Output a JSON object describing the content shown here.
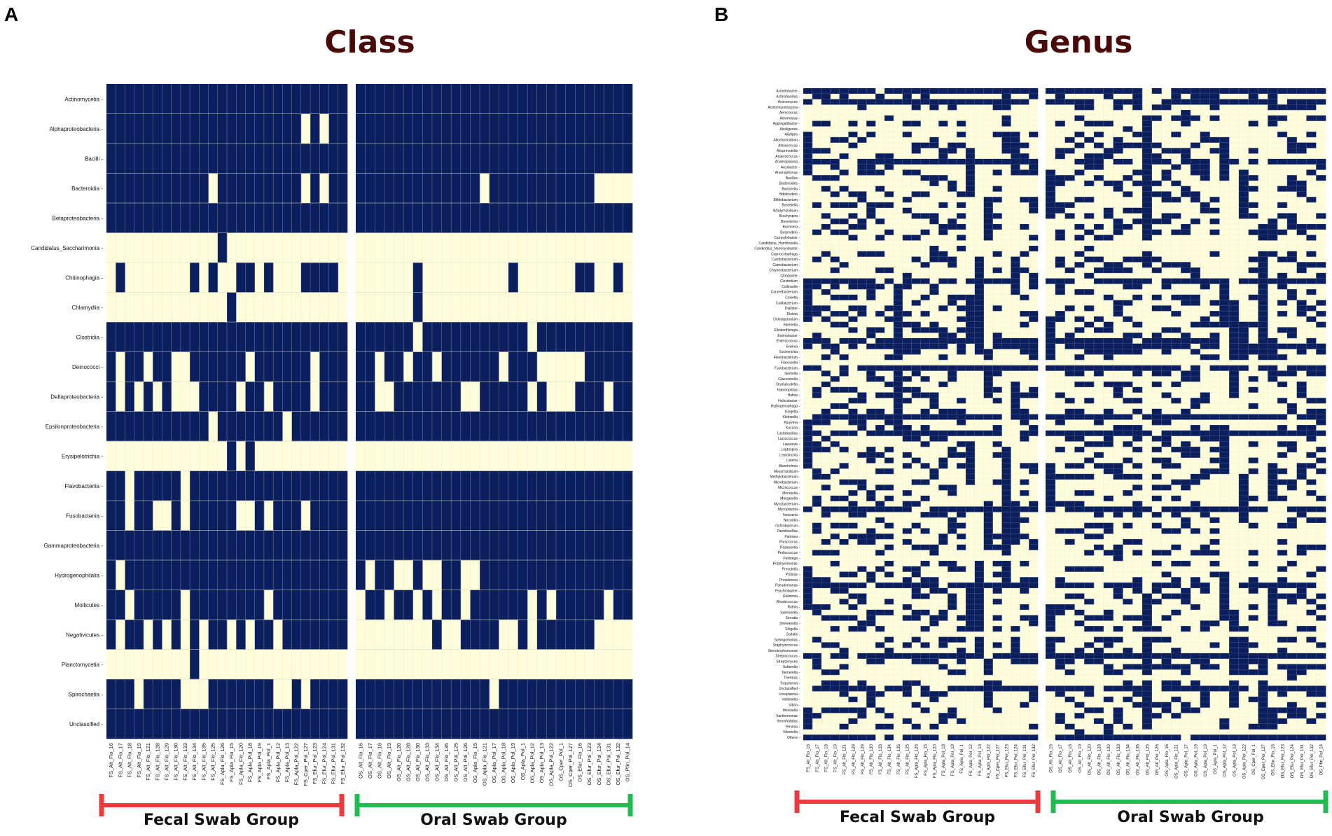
{
  "colors": {
    "present": "#0b1f5e",
    "absent": "#fdfddc",
    "grid": "#d8d8c0",
    "fecal_bracket": "#ee3a3a",
    "oral_bracket": "#1cbf4f",
    "title": "#4a0a0a"
  },
  "chart_data": [
    {
      "type": "heatmap",
      "panel": "A",
      "title": "Class",
      "rows": [
        "Actinomycetia",
        "Alphaproteobacteria",
        "Bacilli",
        "Bacteroidia",
        "Betaproteobacteria",
        "Candidatus_Saccharimonia",
        "Chitinophagia",
        "Chlamydiia",
        "Clostridia",
        "Deinococci",
        "Deltaproteobacteria",
        "Epsilonproteobacteria",
        "Erysipelotrichia",
        "Flavobacteriia",
        "Fusobacteriia",
        "Gammaproteobacteria",
        "Hydrogenophilalia",
        "Mollicutes",
        "Negativicutes",
        "Planctomycetia",
        "Spirochaetia",
        "Unclassified"
      ],
      "fecal_columns": [
        "FS_Alt_Flo_16",
        "FS_Alt_Flo_17",
        "FS_Alt_Flo_18",
        "FS_Alt_Flo_19",
        "FS_Alt_Flo_121",
        "FS_Alt_Flo_128",
        "FS_Alt_Flo_129",
        "FS_Alt_Flo_130",
        "FS_Alt_Flo_133",
        "FS_Alt_Flo_134",
        "FS_Alt_Flo_135",
        "FS_Alt_Flo_125",
        "FS_Apla_Flo_126",
        "FS_Apla_Flo_15",
        "FS_Apla_Flo_120",
        "FS_Apla_Pol_18",
        "FS_Apla_Pol_19",
        "FS_Apla_Pol_1",
        "FS_Apla_Pol_12",
        "FS_Apla_Pol_13",
        "FS_Apla_Pol_122",
        "FS_Cper_Pol_127",
        "FS_Efur_Pol_123",
        "FS_Efur_Pol_124",
        "FS_Efur_Pol_131",
        "FS_Efur_Pol_132"
      ],
      "oral_columns": [
        "OS_Alt_Flo_16",
        "OS_Alt_Flo_17",
        "OS_Alt_Flo_18",
        "OS_Alt_Flo_19",
        "OS_Alt_Flo_120",
        "OS_Alt_Flo_128",
        "OS_Alt_Flo_130",
        "OS_Alt_Flo_133",
        "OS_Alt_Flo_134",
        "OS_Alt_Flo_135",
        "OS_Alt_Pol_125",
        "OS_Alt_Pol_126",
        "OS_Apla_Flo_15",
        "OS_Apla_Flo_121",
        "OS_Apla_Pol_17",
        "OS_Apla_Pol_18",
        "OS_Apla_Pol_19",
        "OS_Apla_Pol_1",
        "OS_Apla_Pol_12",
        "OS_Apla_Pol_13",
        "OS_Apla_Pol_122",
        "OS_Cper_Pol_1",
        "OS_Cper_Pol_127",
        "OS_Efur_Flo_16",
        "OS_Efur_Pol_123",
        "OS_Efur_Pol_124",
        "OS_Efur_Pol_131",
        "OS_Efur_Pol_132",
        "OS_Pfin_Pol_14"
      ],
      "fecal_matrix": [
        "11111111111111111111111111",
        "11111111111111111111101011",
        "11111111111111111111111111",
        "11111111111011111111101011",
        "11111111111111111111111111",
        "00000000000010000000000000",
        "01000000010100110100011110",
        "00000000000001000000000000",
        "11111111111111111111111111",
        "10110110011111101111110111",
        "10101010001111011011110111",
        "11111111111011111110111111",
        "00000000000001010000000000",
        "11011111011111111111111111",
        "11011001011111001011101111",
        "11111111111111111111111111",
        "10111111111111111111111111",
        "11011111011111111011111111",
        "10110101010110101101111111",
        "00000000010000000000000000",
        "11101111000111111100101111",
        "11111111111111111111111111"
      ],
      "oral_matrix": [
        "11111111111111111111111111111",
        "11111111111111111111111111111",
        "11111111111111111111111111111",
        "11111111111110111111111110000",
        "11111111111111111111111111111",
        "00000000000000000000000000000",
        "00000010000000001000000110010",
        "00000010000000000000000000000",
        "11111101111111111101111111111",
        "11011011011111101110000011111",
        "11001111111001111101000111011",
        "11111111111111111111111111111",
        "00000000000000000000000000000",
        "11111111111111111111111111111",
        "11111111111111111111111111111",
        "11111111111111111111111111111",
        "10110010011001111111111111111",
        "01101101011011111101011111011",
        "00000000100111100101111110000",
        "00000000000000000000000000000",
        "11111111111111011111111111111",
        "11111111111111111111111111111"
      ],
      "fecal_group_label": "Fecal Swab Group",
      "oral_group_label": "Oral Swab Group"
    },
    {
      "type": "heatmap",
      "panel": "B",
      "title": "Genus",
      "rows": [
        "Acinetobacter",
        "Actinobacillus",
        "Actinomyces",
        "Actinomycetospora",
        "Aerococcus",
        "Aeromonas",
        "Aggregatibacter",
        "Alcaligenes",
        "Alistipes",
        "Allochromatium",
        "Alloiococcus",
        "Alloprevotella",
        "Anaerococcus",
        "Anaeroplasma",
        "Arcobacter",
        "Arsenophonus",
        "Bacillus",
        "Bacteroides",
        "Bartonella",
        "Bdellovibrio",
        "Bifidobacterium",
        "Bordetella",
        "Bradyrhizobium",
        "Brachyspira",
        "Brevinema",
        "Buchnera",
        "Butyrivibrio",
        "Campylobacter",
        "Candidatus_Hamiltonella",
        "Candidatus_Nanosynbacter",
        "Capnocytophaga",
        "Cardiobacterium",
        "Carnobacterium",
        "Chryseobacterium",
        "Citrobacter",
        "Clostridium",
        "Collinsella",
        "Corynebacterium",
        "Coxiella",
        "Cutibacterium",
        "Dialister",
        "Dietzia",
        "Dolosigranulum",
        "Eikenella",
        "Elizabethkingia",
        "Enterobacter",
        "Enterococcus",
        "Erwinia",
        "Escherichia",
        "Flavobacterium",
        "Francisella",
        "Fusobacterium",
        "Gemella",
        "Glaesserella",
        "Granulicatella",
        "Haemophilus",
        "Hafnia",
        "Helicobacter",
        "Hydrogenophaga",
        "Kingella",
        "Klebsiella",
        "Kluyvera",
        "Kocuria",
        "Lactobacillus",
        "Lactococcus",
        "Lawsonia",
        "Leptospira",
        "Leptotrichia",
        "Listeria",
        "Mannheimia",
        "Mesorhizobium",
        "Methylobacterium",
        "Microbacterium",
        "Micrococcus",
        "Moraxella",
        "Morganella",
        "Mycobacterium",
        "Mycoplasma",
        "Neisseria",
        "Nocardia",
        "Ochrobactrum",
        "Paenibacillus",
        "Pantoea",
        "Paracoccus",
        "Pasteurella",
        "Pediococcus",
        "Pelistega",
        "Porphyromonas",
        "Prevotella",
        "Proteus",
        "Providencia",
        "Pseudomonas",
        "Psychrobacter",
        "Ralstonia",
        "Rhodococcus",
        "Rothia",
        "Salmonella",
        "Serratia",
        "Shewanella",
        "Shigella",
        "Sodalis",
        "Sphingomonas",
        "Staphylococcus",
        "Stenotrophomonas",
        "Streptococcus",
        "Streptomyces",
        "Sutterella",
        "Tannerella",
        "Thermus",
        "Treponema",
        "Unclassified",
        "Ureaplasma",
        "Veillonella",
        "Vibrio",
        "Weissella",
        "Xanthomonas",
        "Xenorhabdus",
        "Yersinia",
        "Yokenella",
        "Others"
      ],
      "fecal_columns": [
        "FS_Alt_Flo_16",
        "FS_Alt_Flo_17",
        "FS_Alt_Flo_18",
        "FS_Alt_Flo_19",
        "FS_Alt_Flo_121",
        "FS_Alt_Flo_128",
        "FS_Alt_Flo_129",
        "FS_Alt_Flo_130",
        "FS_Alt_Flo_133",
        "FS_Alt_Flo_134",
        "FS_Alt_Flo_135",
        "FS_Alt_Flo_125",
        "FS_Apla_Flo_126",
        "FS_Apla_Flo_15",
        "FS_Apla_Flo_120",
        "FS_Apla_Pol_18",
        "FS_Apla_Pol_19",
        "FS_Apla_Pol_1",
        "FS_Apla_Pol_12",
        "FS_Apla_Pol_13",
        "FS_Apla_Pol_122",
        "FS_Cper_Pol_127",
        "FS_Efur_Pol_123",
        "FS_Efur_Pol_124",
        "FS_Efur_Pol_131",
        "FS_Efur_Pol_132"
      ],
      "oral_columns": [
        "OS_Alt_Flo_16",
        "OS_Alt_Flo_17",
        "OS_Alt_Flo_18",
        "OS_Alt_Flo_19",
        "OS_Alt_Flo_120",
        "OS_Alt_Flo_128",
        "OS_Alt_Flo_130",
        "OS_Alt_Flo_133",
        "OS_Alt_Flo_134",
        "OS_Alt_Flo_135",
        "OS_Alt_Pol_125",
        "OS_Alt_Pol_126",
        "OS_Apla_Flo_15",
        "OS_Apla_Flo_121",
        "OS_Apla_Pol_17",
        "OS_Apla_Pol_18",
        "OS_Apla_Pol_19",
        "OS_Apla_Pol_1",
        "OS_Apla_Pol_12",
        "OS_Apla_Pol_13",
        "OS_Apla_Pol_122",
        "OS_Cper_Pol_1",
        "OS_Cper_Pol_127",
        "OS_Efur_Flo_16",
        "OS_Efur_Pol_123",
        "OS_Efur_Pol_124",
        "OS_Efur_Pol_131",
        "OS_Efur_Pol_132",
        "OS_Pfin_Pol_14"
      ],
      "presence_density": 0.32,
      "dense_rows": [
        "Acinetobacter",
        "Actinomyces",
        "Anaeroplasma",
        "Clostridium",
        "Enterococcus",
        "Erwinia",
        "Fusobacterium",
        "Klebsiella",
        "Lactobacillus",
        "Mycoplasma",
        "Pseudomonas",
        "Streptococcus",
        "Unclassified",
        "Others"
      ],
      "sparse_rows": [
        "Aerococcus",
        "Alcaligenes",
        "Candidatus_Hamiltonella",
        "Candidatus_Nanosynbacter",
        "Francisella",
        "Pelistega",
        "Sodalis",
        "Thermus",
        "Yokenella"
      ],
      "fecal_group_label": "Fecal Swab Group",
      "oral_group_label": "Oral Swab Group"
    }
  ]
}
